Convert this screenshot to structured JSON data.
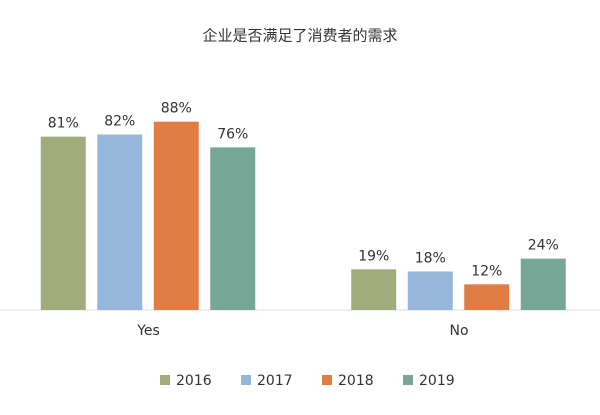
{
  "chart_data": {
    "type": "bar",
    "title": "企业是否满足了消费者的需求",
    "categories": [
      "Yes",
      "No"
    ],
    "series": [
      {
        "name": "2016",
        "color": "#a0ac7b",
        "values": [
          81,
          19
        ],
        "value_labels": [
          "81%",
          "19%"
        ]
      },
      {
        "name": "2017",
        "color": "#96b7d9",
        "values": [
          82,
          18
        ],
        "value_labels": [
          "82%",
          "18%"
        ]
      },
      {
        "name": "2018",
        "color": "#e07d45",
        "values": [
          88,
          12
        ],
        "value_labels": [
          "88%",
          "12%"
        ]
      },
      {
        "name": "2019",
        "color": "#76a696",
        "values": [
          76,
          24
        ],
        "value_labels": [
          "76%",
          "24%"
        ]
      }
    ]
  }
}
